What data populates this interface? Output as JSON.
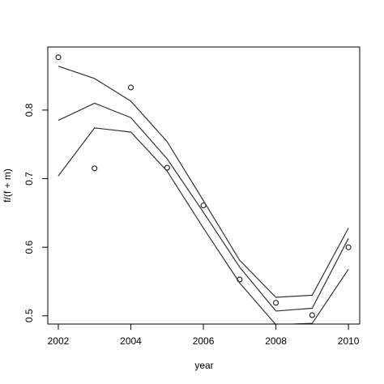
{
  "chart_data": {
    "type": "line",
    "xlabel": "year",
    "ylabel": "f/(f + m)",
    "x": [
      2002,
      2003,
      2004,
      2005,
      2006,
      2007,
      2008,
      2009,
      2010
    ],
    "series": [
      {
        "style": "points",
        "color": "#000000",
        "values": [
          0.877,
          0.715,
          0.833,
          0.716,
          0.661,
          0.553,
          0.519,
          0.501,
          0.6
        ]
      },
      {
        "style": "line",
        "color": "#333333",
        "values": [
          0.785,
          0.81,
          0.789,
          0.729,
          0.651,
          0.571,
          0.507,
          0.511,
          0.613
        ]
      },
      {
        "style": "line",
        "color": "#333333",
        "values": [
          0.864,
          0.846,
          0.813,
          0.754,
          0.668,
          0.581,
          0.527,
          0.53,
          0.628
        ]
      },
      {
        "style": "line",
        "color": "#333333",
        "values": [
          0.704,
          0.774,
          0.768,
          0.711,
          0.628,
          0.548,
          0.487,
          0.489,
          0.568
        ]
      }
    ],
    "xlim": [
      2001.71,
      2010.31
    ],
    "ylim": [
      0.488,
      0.892
    ],
    "xticks": [
      2002,
      2004,
      2006,
      2008,
      2010
    ],
    "yticks": [
      0.5,
      0.6,
      0.7,
      0.8
    ]
  }
}
